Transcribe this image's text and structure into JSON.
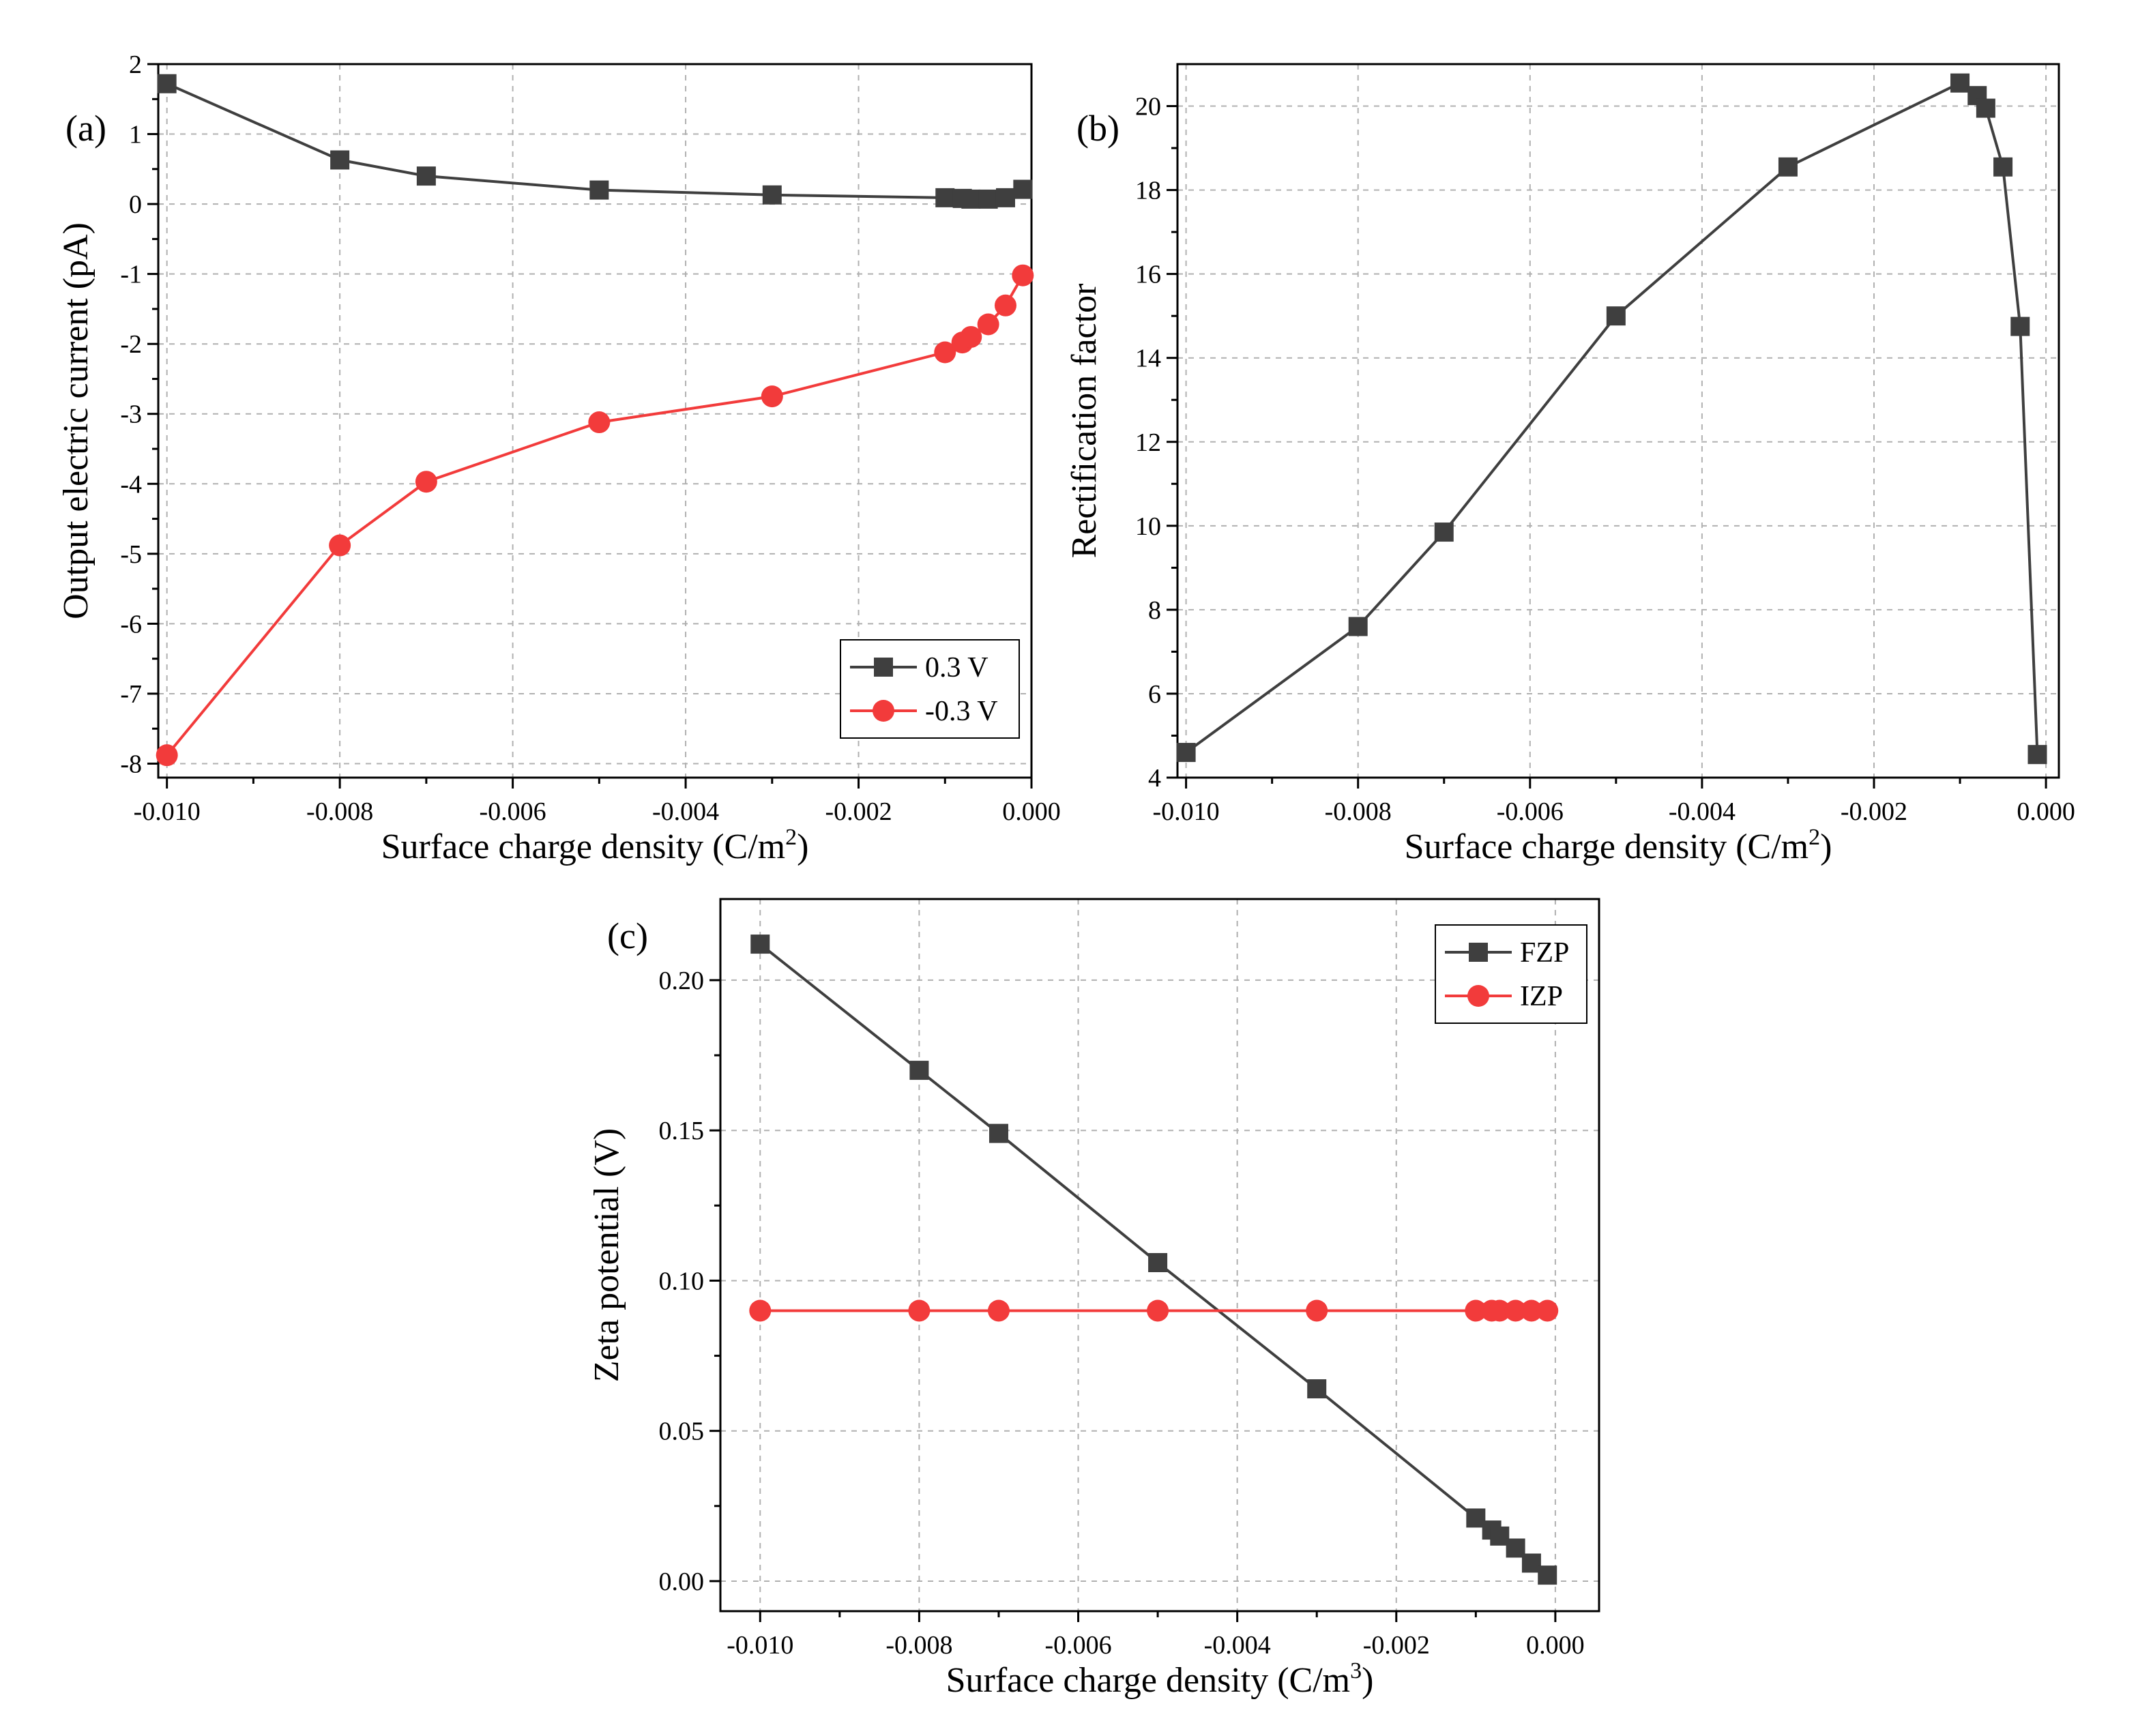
{
  "colors": {
    "series_dark": "#3f3f3f",
    "series_red": "#f23b3b"
  },
  "chart_data": [
    {
      "id": "a",
      "type": "line",
      "panel_label": "(a)",
      "xlabel": "Surface charge density (C/m",
      "xlabel_sup": "2",
      "xlabel_end": ")",
      "ylabel": "Output electric current (pA)",
      "xlim": [
        -0.0101,
        0.0
      ],
      "ylim": [
        -8.2,
        2.0
      ],
      "xticks": [
        -0.01,
        -0.008,
        -0.006,
        -0.004,
        -0.002,
        0.0
      ],
      "xtick_labels": [
        "-0.010",
        "-0.008",
        "-0.006",
        "-0.004",
        "-0.002",
        "0.000"
      ],
      "yticks": [
        -8,
        -7,
        -6,
        -5,
        -4,
        -3,
        -2,
        -1,
        0,
        1,
        2
      ],
      "ytick_labels": [
        "-8",
        "-7",
        "-6",
        "-5",
        "-4",
        "-3",
        "-2",
        "-1",
        "0",
        "1",
        "2"
      ],
      "grid": true,
      "legend_position": "bottom-right",
      "series": [
        {
          "name": "0.3 V",
          "marker": "square",
          "color": "#3f3f3f",
          "x": [
            -0.01,
            -0.008,
            -0.007,
            -0.005,
            -0.003,
            -0.001,
            -0.0008,
            -0.0007,
            -0.0005,
            -0.0003,
            -0.0001
          ],
          "y": [
            1.72,
            0.63,
            0.4,
            0.2,
            0.13,
            0.09,
            0.08,
            0.07,
            0.07,
            0.09,
            0.21
          ]
        },
        {
          "name": "-0.3 V",
          "marker": "circle",
          "color": "#f23b3b",
          "x": [
            -0.01,
            -0.008,
            -0.007,
            -0.005,
            -0.003,
            -0.001,
            -0.0008,
            -0.0007,
            -0.0005,
            -0.0003,
            -0.0001
          ],
          "y": [
            -7.88,
            -4.88,
            -3.97,
            -3.12,
            -2.75,
            -2.12,
            -1.98,
            -1.9,
            -1.72,
            -1.45,
            -1.02
          ]
        }
      ]
    },
    {
      "id": "b",
      "type": "line",
      "panel_label": "(b)",
      "xlabel": "Surface charge density (C/m",
      "xlabel_sup": "2",
      "xlabel_end": ")",
      "ylabel": "Rectification factor",
      "xlim": [
        -0.0101,
        0.00015
      ],
      "ylim": [
        4.0,
        21.0
      ],
      "xticks": [
        -0.01,
        -0.008,
        -0.006,
        -0.004,
        -0.002,
        0.0
      ],
      "xtick_labels": [
        "-0.010",
        "-0.008",
        "-0.006",
        "-0.004",
        "-0.002",
        "0.000"
      ],
      "yticks": [
        4,
        6,
        8,
        10,
        12,
        14,
        16,
        18,
        20
      ],
      "ytick_labels": [
        "4",
        "6",
        "8",
        "10",
        "12",
        "14",
        "16",
        "18",
        "20"
      ],
      "grid": true,
      "legend_position": "none",
      "series": [
        {
          "name": "Rectification factor",
          "marker": "square",
          "color": "#3f3f3f",
          "x": [
            -0.01,
            -0.008,
            -0.007,
            -0.005,
            -0.003,
            -0.001,
            -0.0008,
            -0.0007,
            -0.0005,
            -0.0003,
            -0.0001
          ],
          "y": [
            4.6,
            7.6,
            9.85,
            15.0,
            18.55,
            20.55,
            20.25,
            19.95,
            18.55,
            14.75,
            4.55
          ]
        }
      ]
    },
    {
      "id": "c",
      "type": "line",
      "panel_label": "(c)",
      "xlabel": "Surface charge density (C/m",
      "xlabel_sup": "3",
      "xlabel_end": ")",
      "ylabel": "Zeta potential (V)",
      "xlim": [
        -0.0105,
        0.00055
      ],
      "ylim": [
        -0.01,
        0.227
      ],
      "xticks": [
        -0.01,
        -0.008,
        -0.006,
        -0.004,
        -0.002,
        0.0
      ],
      "xtick_labels": [
        "-0.010",
        "-0.008",
        "-0.006",
        "-0.004",
        "-0.002",
        "0.000"
      ],
      "yticks": [
        0.0,
        0.05,
        0.1,
        0.15,
        0.2
      ],
      "ytick_labels": [
        "0.00",
        "0.05",
        "0.10",
        "0.15",
        "0.20"
      ],
      "grid": true,
      "legend_position": "top-right",
      "series": [
        {
          "name": "FZP",
          "marker": "square",
          "color": "#3f3f3f",
          "x": [
            -0.01,
            -0.008,
            -0.007,
            -0.005,
            -0.003,
            -0.001,
            -0.0008,
            -0.0007,
            -0.0005,
            -0.0003,
            -0.0001
          ],
          "y": [
            0.212,
            0.17,
            0.149,
            0.106,
            0.064,
            0.021,
            0.017,
            0.015,
            0.011,
            0.006,
            0.002
          ]
        },
        {
          "name": "IZP",
          "marker": "circle",
          "color": "#f23b3b",
          "x": [
            -0.01,
            -0.008,
            -0.007,
            -0.005,
            -0.003,
            -0.001,
            -0.0008,
            -0.0007,
            -0.0005,
            -0.0003,
            -0.0001
          ],
          "y": [
            0.09,
            0.09,
            0.09,
            0.09,
            0.09,
            0.09,
            0.09,
            0.09,
            0.09,
            0.09,
            0.09
          ]
        }
      ]
    }
  ]
}
